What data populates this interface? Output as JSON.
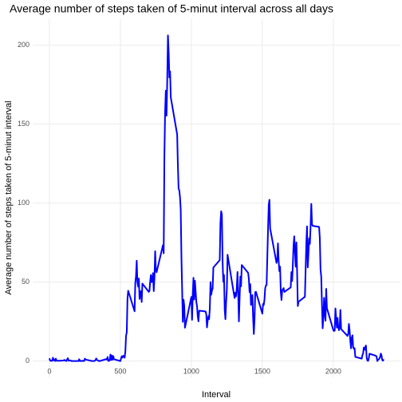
{
  "chart_data": {
    "type": "line",
    "title": "Average number of steps taken of 5-minut interval across all days",
    "x_label": "Interval",
    "y_label": "Average number of steps taken of 5-minut interval",
    "x": [
      0,
      5,
      10,
      15,
      20,
      25,
      30,
      35,
      40,
      45,
      50,
      55,
      100,
      105,
      110,
      115,
      120,
      125,
      130,
      135,
      140,
      145,
      150,
      155,
      200,
      205,
      210,
      215,
      220,
      225,
      230,
      235,
      240,
      245,
      250,
      255,
      300,
      305,
      310,
      315,
      320,
      325,
      330,
      335,
      340,
      345,
      350,
      355,
      400,
      405,
      410,
      415,
      420,
      425,
      430,
      435,
      440,
      445,
      450,
      455,
      500,
      505,
      510,
      515,
      520,
      525,
      530,
      535,
      540,
      545,
      550,
      555,
      600,
      605,
      610,
      615,
      620,
      625,
      630,
      635,
      640,
      645,
      650,
      655,
      700,
      705,
      710,
      715,
      720,
      725,
      730,
      735,
      740,
      745,
      750,
      755,
      800,
      805,
      810,
      815,
      820,
      825,
      830,
      835,
      840,
      845,
      850,
      855,
      900,
      905,
      910,
      915,
      920,
      925,
      930,
      935,
      940,
      945,
      950,
      955,
      1000,
      1005,
      1010,
      1015,
      1020,
      1025,
      1030,
      1035,
      1040,
      1045,
      1050,
      1055,
      1100,
      1105,
      1110,
      1115,
      1120,
      1125,
      1130,
      1135,
      1140,
      1145,
      1150,
      1155,
      1200,
      1205,
      1210,
      1215,
      1220,
      1225,
      1230,
      1235,
      1240,
      1245,
      1250,
      1255,
      1300,
      1305,
      1310,
      1315,
      1320,
      1325,
      1330,
      1335,
      1340,
      1345,
      1350,
      1355,
      1400,
      1405,
      1410,
      1415,
      1420,
      1425,
      1430,
      1435,
      1440,
      1445,
      1450,
      1455,
      1500,
      1505,
      1510,
      1515,
      1520,
      1525,
      1530,
      1535,
      1540,
      1545,
      1550,
      1555,
      1600,
      1605,
      1610,
      1615,
      1620,
      1625,
      1630,
      1635,
      1640,
      1645,
      1650,
      1655,
      1700,
      1705,
      1710,
      1715,
      1720,
      1725,
      1730,
      1735,
      1740,
      1745,
      1750,
      1755,
      1800,
      1805,
      1810,
      1815,
      1820,
      1825,
      1830,
      1835,
      1840,
      1845,
      1850,
      1855,
      1900,
      1905,
      1910,
      1915,
      1920,
      1925,
      1930,
      1935,
      1940,
      1945,
      1950,
      1955,
      2000,
      2005,
      2010,
      2015,
      2020,
      2025,
      2030,
      2035,
      2040,
      2045,
      2050,
      2055,
      2100,
      2105,
      2110,
      2115,
      2120,
      2125,
      2130,
      2135,
      2140,
      2145,
      2150,
      2155,
      2200,
      2205,
      2210,
      2215,
      2220,
      2225,
      2230,
      2235,
      2240,
      2245,
      2250,
      2255,
      2300,
      2305,
      2310,
      2315,
      2320,
      2325,
      2330,
      2335,
      2340,
      2345,
      2350,
      2355
    ],
    "series": [
      {
        "name": "steps",
        "color": "#0000ff",
        "values": [
          1.7,
          0.3,
          0.1,
          0.2,
          0.1,
          2.1,
          0.5,
          0.9,
          0,
          1.5,
          0.3,
          0.1,
          0.3,
          0.7,
          0.2,
          0.3,
          0,
          1.1,
          1.8,
          0.2,
          0.2,
          0.4,
          0.3,
          0,
          0,
          0,
          1.1,
          0,
          0,
          0.1,
          0,
          0.2,
          0,
          0,
          1.5,
          0.9,
          0,
          0,
          0,
          0,
          0.2,
          0.6,
          1.6,
          0.6,
          0.5,
          0.1,
          0,
          0,
          1.2,
          0.9,
          2.6,
          0,
          0.3,
          0.4,
          4.1,
          0.7,
          3.5,
          0.8,
          3.1,
          1.1,
          0,
          1.6,
          3,
          2.2,
          3.3,
          3,
          2.1,
          6.1,
          16,
          18.3,
          39.5,
          44.5,
          31.5,
          49.3,
          53.8,
          63.5,
          50,
          47.1,
          52.2,
          39.3,
          44,
          44.2,
          37.4,
          49,
          43.8,
          44.4,
          50.5,
          54.5,
          49.9,
          51,
          55.7,
          44.3,
          52.3,
          69.5,
          57.8,
          56.2,
          73.4,
          68.2,
          129.4,
          157.5,
          171.2,
          155.4,
          177.3,
          206.2,
          195.9,
          179.6,
          183.4,
          167,
          143.5,
          124,
          109.1,
          108.1,
          103.7,
          96,
          66.2,
          45.2,
          24.8,
          38.8,
          35,
          21.1,
          40.6,
          26.1,
          42.4,
          52.7,
          38.9,
          50.8,
          44.3,
          37.4,
          34.7,
          28.3,
          25.1,
          31.9,
          31.4,
          29.7,
          21.3,
          25.5,
          28.4,
          26.5,
          33.4,
          50,
          42,
          44.6,
          46,
          59.2,
          63.9,
          87.7,
          94.8,
          92.8,
          63.4,
          50.2,
          54.5,
          32.4,
          26.5,
          37.7,
          45.1,
          67.3,
          42.3,
          39.9,
          43.3,
          41,
          46.2,
          56.4,
          42.8,
          25.1,
          40,
          53.5,
          47.3,
          60.8,
          55.8,
          52,
          43.6,
          48.7,
          35.5,
          37.5,
          41.8,
          27.5,
          17.1,
          26.1,
          43.6,
          43.8,
          30,
          36.1,
          35.5,
          38.8,
          46,
          47.8,
          48.1,
          65.3,
          82.9,
          98.7,
          102.1,
          84,
          62.1,
          64.1,
          74.5,
          63.2,
          56.9,
          59.8,
          43.9,
          38.6,
          44.7,
          45.5,
          46.2,
          43.7,
          46.6,
          56.3,
          50.7,
          61.2,
          73.4,
          79,
          68.9,
          59.7,
          75.1,
          56.5,
          34.8,
          37.5,
          40.7,
          58,
          74.7,
          85.3,
          59.3,
          67.8,
          77.7,
          74.2,
          85.3,
          99.5,
          86.6,
          85.6,
          84.9,
          77.8,
          58,
          53.4,
          36.3,
          20.7,
          27.4,
          40,
          30.2,
          25.5,
          45.7,
          33.5,
          19.6,
          19,
          19.3,
          33.3,
          26.8,
          21.2,
          27.3,
          21.3,
          19.5,
          21.3,
          32.3,
          20.2,
          15.9,
          17.2,
          23.5,
          19.2,
          12.5,
          8,
          14.7,
          16.3,
          8.7,
          7.8,
          8.1,
          2.6,
          1.5,
          3.7,
          4.8,
          8.5,
          7.1,
          8.7,
          9.8,
          2.2,
          0.3,
          0.1,
          1.6,
          4.6,
          3.3,
          2.8,
          0,
          0.8,
          1,
          1.6,
          2.6,
          4.7,
          3.3,
          0.6,
          0.2,
          1.1
        ]
      }
    ],
    "xlim": [
      -117.75,
      2472.75
    ],
    "xticks": [
      0,
      500,
      1000,
      1500,
      2000
    ],
    "ylim": [
      -10.3,
      216.5
    ],
    "yticks": [
      0,
      50,
      100,
      150,
      200
    ],
    "grid": true
  }
}
